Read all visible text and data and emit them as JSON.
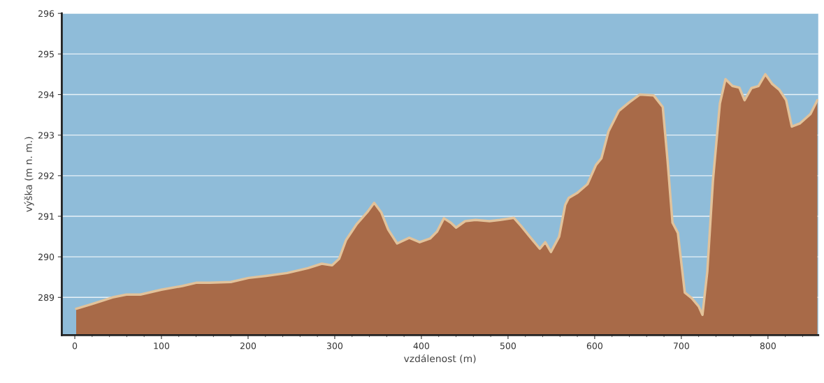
{
  "chart_data": {
    "type": "area",
    "xlabel": "vzdálenost (m)",
    "ylabel": "výška (m n. m.)",
    "x": [
      1.6,
      19,
      43.5,
      59.6,
      75.7,
      99.9,
      124,
      140,
      156,
      180,
      200.6,
      220.8,
      245,
      269,
      285,
      297,
      305,
      313,
      325.5,
      337.5,
      345.5,
      353.6,
      361.7,
      372,
      386,
      398,
      410,
      418,
      426,
      434,
      440,
      450.5,
      462.5,
      478.6,
      490.7,
      506.8,
      515,
      525,
      536.6,
      543,
      549.5,
      559,
      566,
      570,
      579.6,
      591.7,
      601.4,
      607.8,
      615.9,
      628,
      640,
      652,
      668,
      678.6,
      684,
      689.8,
      696,
      704,
      712,
      720,
      724.4,
      730,
      736.5,
      744.5,
      751,
      759,
      767,
      773,
      781,
      789,
      797,
      805,
      813,
      821,
      827.5,
      837,
      849,
      857
    ],
    "series": [
      {
        "color": "#a86a48",
        "values": [
          288.72,
          288.83,
          289.0,
          289.07,
          289.07,
          289.19,
          289.28,
          289.36,
          289.36,
          289.38,
          289.48,
          289.53,
          289.6,
          289.72,
          289.83,
          289.79,
          289.95,
          290.41,
          290.81,
          291.1,
          291.33,
          291.1,
          290.67,
          290.33,
          290.47,
          290.36,
          290.45,
          290.62,
          290.95,
          290.84,
          290.72,
          290.88,
          290.91,
          290.88,
          290.91,
          290.96,
          290.76,
          290.5,
          290.2,
          290.36,
          290.12,
          290.5,
          291.28,
          291.45,
          291.57,
          291.79,
          292.26,
          292.43,
          293.09,
          293.6,
          293.81,
          294.0,
          293.98,
          293.69,
          292.4,
          290.84,
          290.59,
          289.12,
          288.98,
          288.78,
          288.57,
          289.64,
          291.88,
          293.78,
          294.38,
          294.21,
          294.17,
          293.86,
          294.16,
          294.21,
          294.5,
          294.26,
          294.12,
          293.86,
          293.21,
          293.29,
          293.52,
          293.86
        ]
      }
    ],
    "xlim": [
      -15,
      858
    ],
    "ylim": [
      288.07,
      296
    ],
    "xticks": [
      0,
      100,
      200,
      300,
      400,
      500,
      600,
      700,
      800
    ],
    "yticks": [
      289,
      290,
      291,
      292,
      293,
      294,
      295,
      296
    ],
    "grid": "y",
    "legend": false
  }
}
